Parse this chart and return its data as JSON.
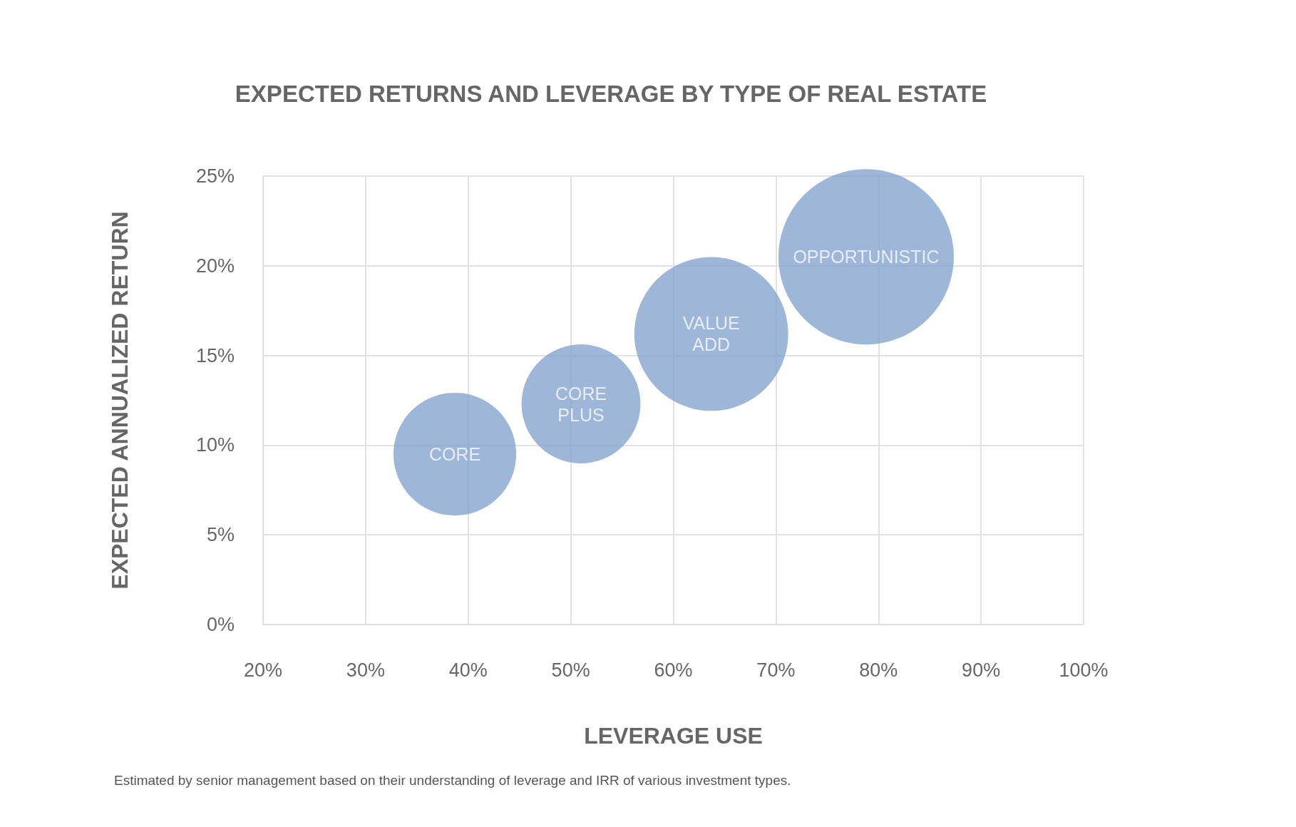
{
  "chart_data": {
    "type": "bubble",
    "title": "EXPECTED RETURNS AND LEVERAGE BY TYPE OF REAL ESTATE",
    "xlabel": "LEVERAGE USE",
    "ylabel": "EXPECTED ANNUALIZED RETURN",
    "annotations": [
      "Estimated by senior management based on their understanding of leverage and IRR of various investment types."
    ],
    "series": [
      {
        "name": "CORE",
        "color": "#7d9fcb",
        "x": [
          38.7
        ],
        "values": [
          9.5
        ],
        "sizes": [
          0.49
        ]
      },
      {
        "name": "CORE PLUS",
        "color": "#7d9fcb",
        "x": [
          51
        ],
        "values": [
          12.3
        ],
        "sizes": [
          0.46
        ]
      },
      {
        "name": "VALUE ADD",
        "color": "#7d9fcb",
        "x": [
          63.7
        ],
        "values": [
          16.2
        ],
        "sizes": [
          0.77
        ]
      },
      {
        "name": "OPPORTUNISTIC",
        "color": "#7d9fcb",
        "x": [
          78.8
        ],
        "values": [
          20.5
        ],
        "sizes": [
          1
        ]
      }
    ],
    "xlim": [
      20,
      100
    ],
    "xticks": [
      {
        "value": 20,
        "label": "20%"
      },
      {
        "value": 30,
        "label": "30%"
      },
      {
        "value": 40,
        "label": "40%"
      },
      {
        "value": 50,
        "label": "50%"
      },
      {
        "value": 60,
        "label": "60%"
      },
      {
        "value": 70,
        "label": "70%"
      },
      {
        "value": 80,
        "label": "80%"
      },
      {
        "value": 90,
        "label": "90%"
      },
      {
        "value": 100,
        "label": "100%"
      }
    ],
    "ylim": [
      0,
      25
    ],
    "yticks": [
      {
        "value": 0,
        "label": "0%"
      },
      {
        "value": 5,
        "label": "5%"
      },
      {
        "value": 10,
        "label": "10%"
      },
      {
        "value": 15,
        "label": "15%"
      },
      {
        "value": 20,
        "label": "20%"
      },
      {
        "value": 25,
        "label": "25%"
      }
    ],
    "grid": true,
    "legend": false
  }
}
